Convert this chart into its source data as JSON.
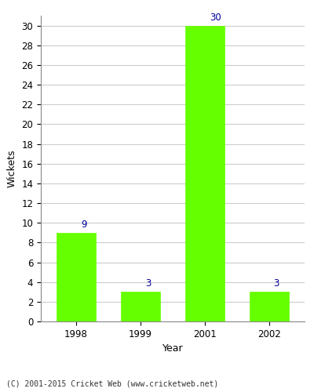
{
  "categories": [
    "1998",
    "1999",
    "2001",
    "2002"
  ],
  "values": [
    9,
    3,
    30,
    3
  ],
  "bar_color": "#66ff00",
  "bar_edge_color": "#66ff00",
  "annotation_color": "#000099",
  "title": "",
  "xlabel": "Year",
  "ylabel": "Wickets",
  "ylim": [
    0,
    31
  ],
  "yticks": [
    0,
    2,
    4,
    6,
    8,
    10,
    12,
    14,
    16,
    18,
    20,
    22,
    24,
    26,
    28,
    30
  ],
  "grid_color": "#cccccc",
  "background_color": "#ffffff",
  "footer_text": "(C) 2001-2015 Cricket Web (www.cricketweb.net)",
  "annotation_fontsize": 8.5,
  "axis_fontsize": 9,
  "tick_fontsize": 8.5,
  "bar_width": 0.6
}
